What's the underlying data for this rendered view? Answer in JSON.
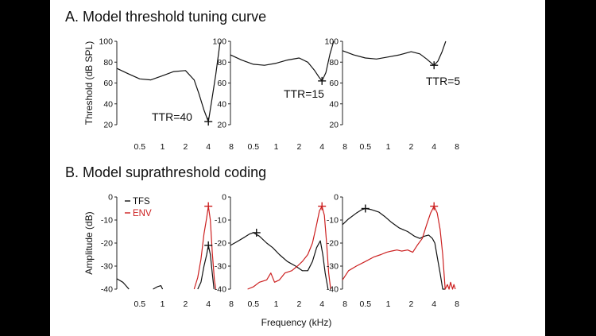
{
  "panel_a_title": "A. Model threshold tuning curve",
  "panel_b_title": "B. Model suprathreshold coding",
  "x_axis_label": "Frequency (kHz)",
  "colors": {
    "tfs": "#111111",
    "env": "#cc2020"
  },
  "chart_data": [
    {
      "type": "line",
      "group": "A",
      "ylabel": "Threshold (dB SPL)",
      "ylim": [
        20,
        100
      ],
      "yticks": [
        20,
        40,
        60,
        80,
        100
      ],
      "xlim": [
        0.25,
        8
      ],
      "xticks": [
        0.5,
        1,
        2,
        4,
        8
      ],
      "xscale": "log2",
      "annotation": "TTR=40",
      "series": [
        {
          "key": "threshold",
          "x": [
            0.25,
            0.35,
            0.5,
            0.7,
            1.0,
            1.4,
            2.0,
            2.6,
            3.0,
            3.5,
            4.0,
            4.4,
            5.0,
            5.7
          ],
          "y": [
            74,
            69,
            64,
            63,
            67,
            71,
            72,
            63,
            50,
            34,
            23,
            42,
            68,
            99
          ]
        }
      ],
      "markers": [
        {
          "x": 4,
          "y": 23,
          "series": "threshold"
        }
      ]
    },
    {
      "type": "line",
      "group": "A",
      "ylabel": "",
      "ylim": [
        20,
        100
      ],
      "yticks": [
        20,
        40,
        60,
        80,
        100
      ],
      "xlim": [
        0.25,
        8
      ],
      "xticks": [
        0.5,
        1,
        2,
        4,
        8
      ],
      "xscale": "log2",
      "annotation": "TTR=15",
      "series": [
        {
          "key": "threshold",
          "x": [
            0.25,
            0.35,
            0.5,
            0.7,
            1.0,
            1.4,
            2.0,
            2.6,
            3.2,
            3.7,
            4.0,
            4.5,
            5.1,
            5.7
          ],
          "y": [
            87,
            82,
            78,
            77,
            79,
            82,
            84,
            80,
            72,
            65,
            62,
            70,
            88,
            100
          ]
        }
      ],
      "markers": [
        {
          "x": 4,
          "y": 62,
          "series": "threshold"
        }
      ]
    },
    {
      "type": "line",
      "group": "A",
      "ylabel": "",
      "ylim": [
        20,
        100
      ],
      "yticks": [
        20,
        40,
        60,
        80,
        100
      ],
      "xlim": [
        0.25,
        8
      ],
      "xticks": [
        0.5,
        1,
        2,
        4,
        8
      ],
      "xscale": "log2",
      "annotation": "TTR=5",
      "series": [
        {
          "key": "threshold",
          "x": [
            0.25,
            0.35,
            0.5,
            0.7,
            1.0,
            1.4,
            2.0,
            2.6,
            3.2,
            3.7,
            4.0,
            4.5,
            5.1,
            5.7
          ],
          "y": [
            91,
            87,
            84,
            83,
            85,
            87,
            90,
            88,
            83,
            79,
            77,
            81,
            90,
            100
          ]
        }
      ],
      "markers": [
        {
          "x": 4,
          "y": 77,
          "series": "threshold"
        }
      ]
    },
    {
      "type": "line",
      "group": "B",
      "ylabel": "Amplitude (dB)",
      "ylim": [
        -40,
        0
      ],
      "yticks": [
        -40,
        -30,
        -20,
        -10,
        0
      ],
      "xlim": [
        0.25,
        8
      ],
      "xticks": [
        0.5,
        1,
        2,
        4,
        8
      ],
      "xscale": "log2",
      "legend": {
        "position": "top-left",
        "entries": [
          {
            "label": "TFS",
            "series": "tfs"
          },
          {
            "label": "ENV",
            "series": "env"
          }
        ]
      },
      "series": [
        {
          "key": "tfs",
          "x": [
            0.25,
            0.3,
            0.33,
            0.36
          ],
          "y": [
            -35.5,
            -37,
            -38.5,
            -40
          ]
        },
        {
          "key": "tfs",
          "x": [
            0.75,
            0.85,
            0.95,
            1.0
          ],
          "y": [
            -40,
            -39,
            -38.5,
            -40
          ]
        },
        {
          "key": "tfs",
          "x": [
            2.9,
            3.2,
            3.5,
            3.8,
            4.0,
            4.25,
            4.5,
            4.75
          ],
          "y": [
            -40,
            -37,
            -30,
            -25,
            -21,
            -25,
            -33,
            -40
          ]
        },
        {
          "key": "env",
          "x": [
            2.6,
            2.9,
            3.2,
            3.5,
            3.8,
            4.0,
            4.25,
            4.5,
            4.8,
            5.0
          ],
          "y": [
            -40,
            -35,
            -27,
            -16,
            -9,
            -4,
            -10,
            -24,
            -36,
            -40
          ]
        }
      ],
      "markers": [
        {
          "x": 4,
          "y": -21,
          "series": "tfs"
        },
        {
          "x": 4,
          "y": -4,
          "series": "env"
        }
      ]
    },
    {
      "type": "line",
      "group": "B",
      "ylabel": "",
      "ylim": [
        -40,
        0
      ],
      "yticks": [
        -40,
        -30,
        -20,
        -10,
        0
      ],
      "xlim": [
        0.25,
        8
      ],
      "xticks": [
        0.5,
        1,
        2,
        4,
        8
      ],
      "xscale": "log2",
      "series": [
        {
          "key": "tfs",
          "x": [
            0.25,
            0.3,
            0.38,
            0.45,
            0.5,
            0.6,
            0.75,
            0.9,
            1.1,
            1.4,
            1.8,
            2.2,
            2.6,
            3.0,
            3.4,
            3.8,
            4.1,
            4.4,
            4.8
          ],
          "y": [
            -21,
            -19.5,
            -17.5,
            -16,
            -15.5,
            -17,
            -20,
            -22,
            -25,
            -28,
            -30,
            -32,
            -32,
            -28,
            -22,
            -19,
            -25,
            -33,
            -40
          ]
        },
        {
          "key": "env",
          "x": [
            0.42,
            0.5,
            0.6,
            0.75,
            0.85,
            0.95,
            1.1,
            1.3,
            1.6,
            1.9,
            2.2,
            2.6,
            3.0,
            3.4,
            3.7,
            4.0,
            4.3,
            4.6,
            4.9,
            5.2
          ],
          "y": [
            -40,
            -39,
            -37,
            -36,
            -33,
            -37,
            -36,
            -33,
            -32,
            -30,
            -28,
            -25,
            -20,
            -12,
            -6,
            -4,
            -8,
            -20,
            -33,
            -40
          ]
        }
      ],
      "markers": [
        {
          "x": 0.55,
          "y": -15.5,
          "series": "tfs"
        },
        {
          "x": 4,
          "y": -4,
          "series": "env"
        }
      ]
    },
    {
      "type": "line",
      "group": "B",
      "ylabel": "",
      "ylim": [
        -40,
        0
      ],
      "yticks": [
        -40,
        -30,
        -20,
        -10,
        0
      ],
      "xlim": [
        0.25,
        8
      ],
      "xticks": [
        0.5,
        1,
        2,
        4,
        8
      ],
      "xscale": "log2",
      "series": [
        {
          "key": "tfs",
          "x": [
            0.25,
            0.3,
            0.38,
            0.45,
            0.5,
            0.6,
            0.75,
            0.9,
            1.1,
            1.4,
            1.8,
            2.2,
            2.6,
            3.0,
            3.4,
            3.8,
            4.1,
            4.4,
            4.8,
            5.2,
            5.6
          ],
          "y": [
            -12,
            -9.5,
            -7,
            -5.5,
            -5,
            -5.5,
            -6.5,
            -8.5,
            -11,
            -13.5,
            -15,
            -17,
            -18,
            -17,
            -16.5,
            -18,
            -20,
            -26,
            -33,
            -40,
            -40
          ]
        },
        {
          "key": "env",
          "x": [
            0.25,
            0.3,
            0.38,
            0.5,
            0.65,
            0.8,
            0.95,
            1.1,
            1.3,
            1.5,
            1.8,
            2.1,
            2.4,
            2.8,
            3.2,
            3.6,
            4.0,
            4.4,
            4.8,
            5.2,
            5.6,
            6.0,
            6.3,
            6.6,
            7.0,
            7.3,
            7.6
          ],
          "y": [
            -36,
            -32,
            -30,
            -28,
            -26,
            -25,
            -24,
            -23.5,
            -23,
            -23.5,
            -23,
            -24,
            -21,
            -18,
            -12,
            -7,
            -4,
            -7,
            -14,
            -25,
            -40,
            -38,
            -40,
            -37,
            -40,
            -38,
            -40
          ]
        }
      ],
      "markers": [
        {
          "x": 0.5,
          "y": -5,
          "series": "tfs"
        },
        {
          "x": 4,
          "y": -4,
          "series": "env"
        }
      ]
    }
  ]
}
